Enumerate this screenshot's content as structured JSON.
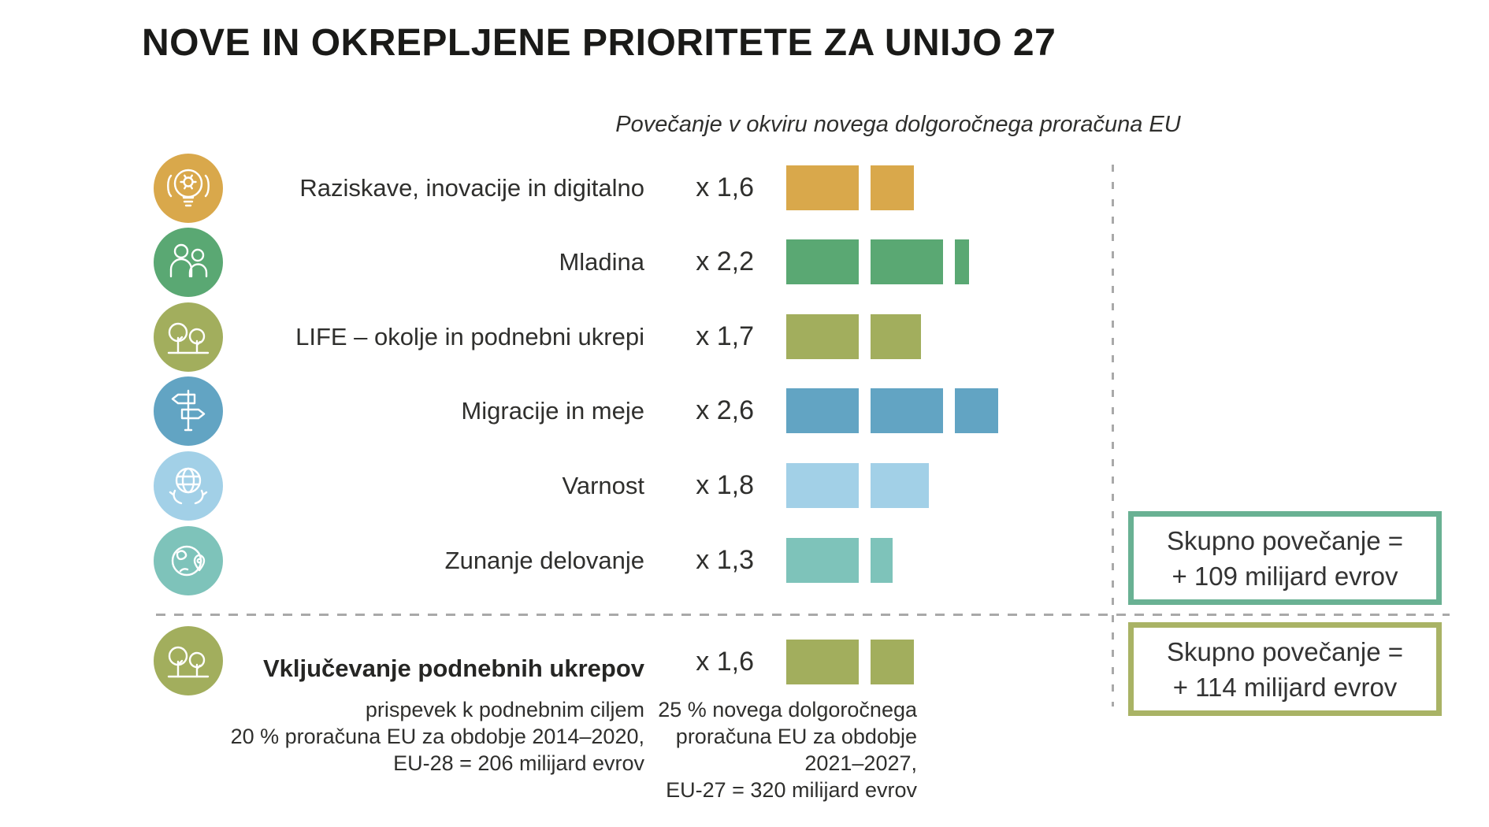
{
  "title": "NOVE IN OKREPLJENE PRIORITETE ZA UNIJO 27",
  "subtitle": "Povečanje v okviru novega dolgoročnega proračuna EU",
  "colors": {
    "gold": "#d9a84b",
    "green": "#5aa873",
    "olive": "#a2ae5d",
    "blue": "#62a4c3",
    "lightblue": "#a2d0e7",
    "teal": "#7ec3ba",
    "total_box_1_border": "#69b193",
    "total_box_2_border": "#a9b365",
    "dashed_line": "#a9a9a9"
  },
  "chart_data": {
    "type": "bar",
    "title": "NOVE IN OKREPLJENE PRIORITETE ZA UNIJO 27",
    "subtitle": "Povečanje v okviru novega dolgoročnega proračuna EU",
    "unit_bar_note": "bars show multiplier: one full block = previous budget, segments = multiplier value",
    "rows": [
      {
        "label": "Raziskave, inovacije in digitalno",
        "multiplier_label": "x 1,6",
        "multiplier": 1.6,
        "color": "#d9a84b",
        "icon": "lightbulb-gear"
      },
      {
        "label": "Mladina",
        "multiplier_label": "x 2,2",
        "multiplier": 2.2,
        "color": "#5aa873",
        "icon": "people"
      },
      {
        "label": "LIFE – okolje in podnebni ukrepi",
        "multiplier_label": "x 1,7",
        "multiplier": 1.7,
        "color": "#a2ae5d",
        "icon": "trees"
      },
      {
        "label": "Migracije in meje",
        "multiplier_label": "x 2,6",
        "multiplier": 2.6,
        "color": "#62a4c3",
        "icon": "signpost"
      },
      {
        "label": "Varnost",
        "multiplier_label": "x 1,8",
        "multiplier": 1.8,
        "color": "#a2d0e7",
        "icon": "globe-hands"
      },
      {
        "label": "Zunanje delovanje",
        "multiplier_label": "x 1,3",
        "multiplier": 1.3,
        "color": "#7ec3ba",
        "icon": "globe-pin"
      }
    ],
    "climate_row": {
      "label": "Vključevanje podnebnih ukrepov",
      "multiplier_label": "x 1,6",
      "multiplier": 1.6,
      "color": "#a2ae5d",
      "icon": "trees",
      "left_note": [
        "prispevek k podnebnim ciljem",
        "20 % proračuna EU za obdobje 2014–2020,",
        "EU-28 = 206 milijard evrov"
      ],
      "right_note": [
        "25 % novega dolgoročnega",
        "proračuna EU za obdobje",
        "2021–2027,",
        "EU-27 = 320 milijard evrov"
      ]
    },
    "totals": [
      {
        "line1": "Skupno povečanje =",
        "line2": "+ 109 milijard evrov",
        "border_color": "#69b193"
      },
      {
        "line1": "Skupno povečanje =",
        "line2": "+ 114 milijard evrov",
        "border_color": "#a9b365"
      }
    ]
  }
}
